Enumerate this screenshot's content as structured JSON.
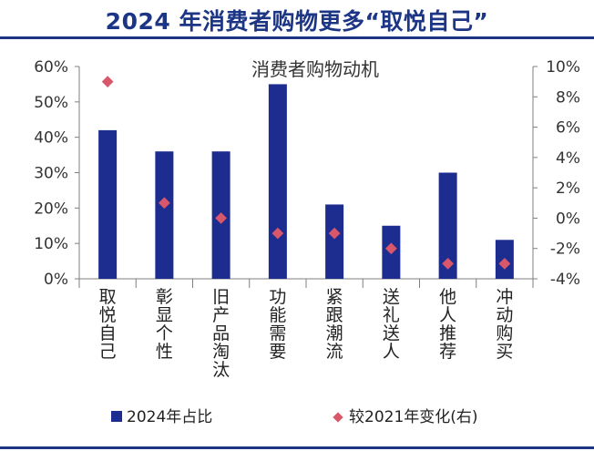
{
  "header": {
    "title": "2024 年消费者购物更多“取悦自己”"
  },
  "colors": {
    "bar": "#1d2c8f",
    "marker": "#d9576a",
    "rule": "#1d3585"
  },
  "chart_data": {
    "type": "bar",
    "title": "消费者购物动机",
    "categories": [
      "取悦自己",
      "彰显个性",
      "旧产品淘汰",
      "功能需要",
      "紧跟潮流",
      "送礼送人",
      "他人推荐",
      "冲动购买"
    ],
    "series": [
      {
        "name": "2024年占比",
        "type": "bar",
        "axis": "left",
        "values": [
          42,
          36,
          36,
          55,
          21,
          15,
          30,
          11
        ]
      },
      {
        "name": "较2021年变化(右)",
        "type": "scatter",
        "axis": "right",
        "values": [
          9,
          1,
          0,
          -1,
          -1,
          -2,
          -3,
          -3
        ]
      }
    ],
    "y_left": {
      "ylim": [
        0,
        60
      ],
      "ticks": [
        "0%",
        "10%",
        "20%",
        "30%",
        "40%",
        "50%",
        "60%"
      ]
    },
    "y_right": {
      "ylim": [
        -4,
        10
      ],
      "ticks": [
        "-4%",
        "-2%",
        "0%",
        "2%",
        "4%",
        "6%",
        "8%",
        "10%"
      ]
    },
    "grid": false,
    "legend_position": "bottom"
  }
}
